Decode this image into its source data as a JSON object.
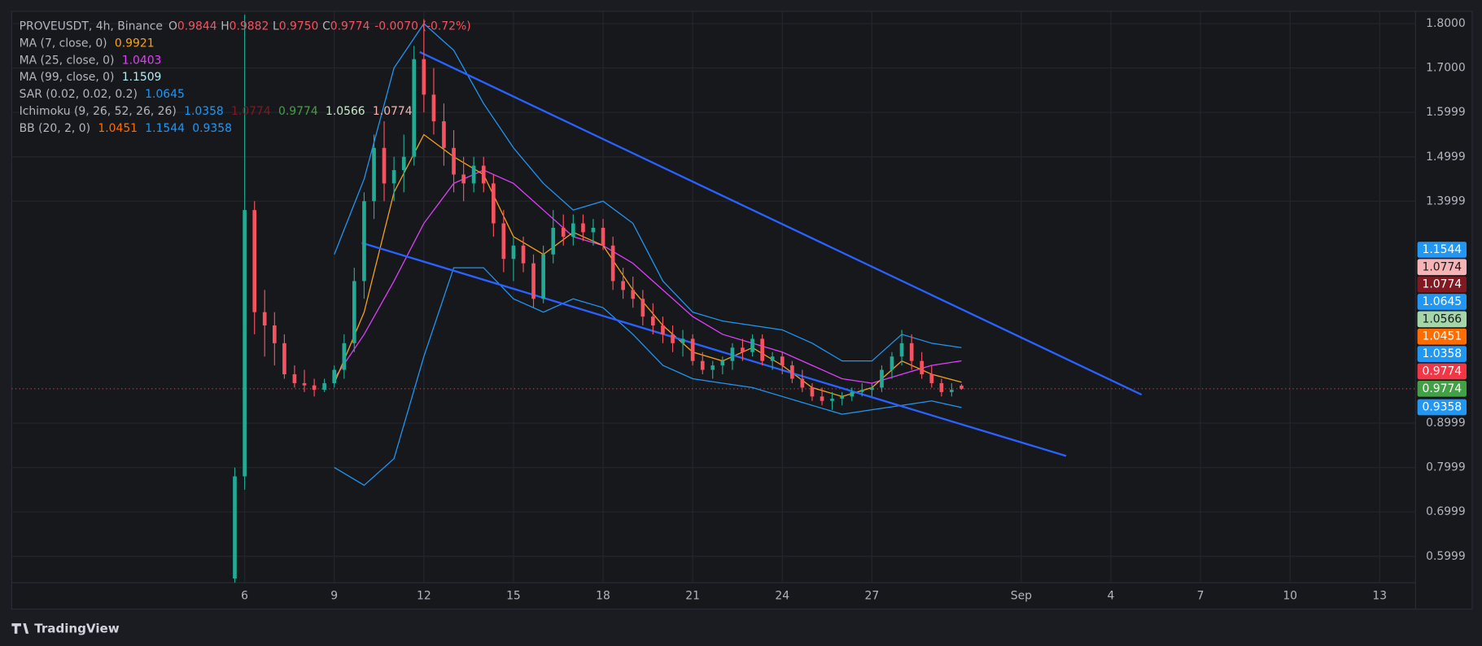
{
  "brand": "TradingView",
  "chart_data": {
    "type": "candlestick",
    "header": {
      "symbol": "PROVEUSDT, 4h, Binance",
      "ohlc_labels": [
        "O",
        "H",
        "L",
        "C"
      ],
      "ohlc": [
        0.9844,
        0.9882,
        {
          "value": 0.975,
          "label": "0.9750"
        },
        0.9774
      ],
      "change": {
        "value": -0.007,
        "label": "-0.0070"
      },
      "change_pct": {
        "value": -0.72,
        "label": "(-0.72%)"
      }
    },
    "indicators": [
      {
        "name": "MA (7, close, 0)",
        "values": [
          0.9921
        ],
        "colors": [
          "#f7a21b"
        ]
      },
      {
        "name": "MA (25, close, 0)",
        "values": [
          1.0403
        ],
        "colors": [
          "#e040fb"
        ]
      },
      {
        "name": "MA (99, close, 0)",
        "values": [
          1.1509
        ],
        "colors": [
          "#b2ebf2"
        ]
      },
      {
        "name": "SAR (0.02, 0.02, 0.2)",
        "values": [
          1.0645
        ],
        "colors": [
          "#2196f3"
        ]
      },
      {
        "name": "Ichimoku (9, 26, 52, 26, 26)",
        "values": [
          1.0358,
          1.0774,
          0.9774,
          1.0566,
          1.0774
        ],
        "colors": [
          "#2196f3",
          "#801922",
          "#43a047",
          "#c8e6c9",
          "#f8b4b4"
        ]
      },
      {
        "name": "BB (20, 2, 0)",
        "values": [
          1.0451,
          1.1544,
          0.9358
        ],
        "colors": [
          "#ff6d00",
          "#2196f3",
          "#2196f3"
        ]
      }
    ],
    "up_color": "#22ab94",
    "down_color": "#f7525f",
    "x": [
      5.67,
      6,
      6.33,
      6.67,
      7,
      7.33,
      7.67,
      8,
      8.33,
      8.67,
      9,
      9.33,
      9.67,
      10,
      10.33,
      10.67,
      11,
      11.33,
      11.67,
      12,
      12.33,
      12.67,
      13,
      13.33,
      13.67,
      14,
      14.33,
      14.67,
      15,
      15.33,
      15.67,
      16,
      16.33,
      16.67,
      17,
      17.33,
      17.67,
      18,
      18.33,
      18.67,
      19,
      19.33,
      19.67,
      20,
      20.33,
      20.67,
      21,
      21.33,
      21.67,
      22,
      22.33,
      22.67,
      23,
      23.33,
      23.67,
      24,
      24.33,
      24.67,
      25,
      25.33,
      25.67,
      26,
      26.33,
      26.67,
      27,
      27.33,
      27.67,
      28,
      28.33,
      28.67,
      29,
      29.33,
      29.67,
      30
    ],
    "open": [
      0.55,
      0.78,
      1.38,
      1.15,
      1.12,
      1.08,
      1.01,
      0.99,
      0.985,
      0.975,
      0.99,
      1.02,
      1.08,
      1.22,
      1.4,
      1.52,
      1.44,
      1.47,
      1.5,
      1.72,
      1.64,
      1.58,
      1.52,
      1.46,
      1.44,
      1.48,
      1.44,
      1.35,
      1.27,
      1.3,
      1.26,
      1.18,
      1.28,
      1.34,
      1.32,
      1.35,
      1.33,
      1.34,
      1.3,
      1.22,
      1.2,
      1.18,
      1.14,
      1.12,
      1.1,
      1.08,
      1.09,
      1.04,
      1.02,
      1.03,
      1.04,
      1.07,
      1.06,
      1.09,
      1.04,
      1.05,
      1.03,
      1.0,
      0.98,
      0.96,
      0.95,
      0.955,
      0.96,
      0.97,
      0.975,
      0.98,
      1.02,
      1.05,
      1.08,
      1.04,
      1.01,
      0.99,
      0.97,
      0.9844
    ],
    "high": [
      0.8,
      1.82,
      1.4,
      1.2,
      1.15,
      1.1,
      1.03,
      1.02,
      1.0,
      1.0,
      1.03,
      1.1,
      1.25,
      1.42,
      1.55,
      1.58,
      1.5,
      1.55,
      1.75,
      1.81,
      1.7,
      1.62,
      1.56,
      1.5,
      1.5,
      1.5,
      1.46,
      1.38,
      1.32,
      1.32,
      1.28,
      1.3,
      1.38,
      1.37,
      1.37,
      1.37,
      1.36,
      1.36,
      1.32,
      1.25,
      1.23,
      1.2,
      1.17,
      1.14,
      1.12,
      1.11,
      1.1,
      1.06,
      1.04,
      1.05,
      1.08,
      1.09,
      1.1,
      1.1,
      1.06,
      1.06,
      1.04,
      1.02,
      0.99,
      0.98,
      0.97,
      0.97,
      0.98,
      0.99,
      0.99,
      1.03,
      1.06,
      1.11,
      1.1,
      1.06,
      1.03,
      1.0,
      0.99,
      0.9882
    ],
    "low": [
      0.54,
      0.75,
      1.1,
      1.05,
      1.03,
      1.0,
      0.98,
      0.97,
      0.96,
      0.97,
      0.98,
      1.0,
      1.06,
      1.18,
      1.36,
      1.4,
      1.4,
      1.42,
      1.48,
      1.6,
      1.55,
      1.48,
      1.42,
      1.4,
      1.42,
      1.42,
      1.32,
      1.24,
      1.22,
      1.24,
      1.16,
      1.17,
      1.26,
      1.3,
      1.3,
      1.31,
      1.3,
      1.29,
      1.2,
      1.18,
      1.16,
      1.12,
      1.1,
      1.08,
      1.06,
      1.05,
      1.03,
      1.01,
      1.0,
      1.01,
      1.02,
      1.04,
      1.05,
      1.03,
      1.02,
      1.01,
      0.99,
      0.97,
      0.95,
      0.94,
      0.93,
      0.94,
      0.95,
      0.96,
      0.96,
      0.97,
      1.0,
      1.03,
      1.02,
      1.0,
      0.98,
      0.96,
      0.96,
      0.975
    ],
    "close": [
      0.78,
      1.38,
      1.15,
      1.12,
      1.08,
      1.01,
      0.99,
      0.985,
      0.975,
      0.99,
      1.02,
      1.08,
      1.22,
      1.4,
      1.52,
      1.44,
      1.47,
      1.5,
      1.72,
      1.64,
      1.58,
      1.52,
      1.46,
      1.44,
      1.48,
      1.44,
      1.35,
      1.27,
      1.3,
      1.26,
      1.18,
      1.28,
      1.34,
      1.32,
      1.35,
      1.33,
      1.34,
      1.3,
      1.22,
      1.2,
      1.18,
      1.14,
      1.12,
      1.1,
      1.08,
      1.09,
      1.04,
      1.02,
      1.03,
      1.04,
      1.07,
      1.06,
      1.09,
      1.04,
      1.05,
      1.03,
      1.0,
      0.98,
      0.96,
      0.95,
      0.955,
      0.96,
      0.97,
      0.975,
      0.98,
      1.02,
      1.05,
      1.08,
      1.04,
      1.01,
      0.99,
      0.97,
      0.975,
      0.9774
    ],
    "lines": [
      {
        "color": "#2196f3",
        "x": [
          9,
          10,
          11,
          12,
          13,
          14,
          15,
          16,
          17,
          18,
          19,
          20,
          21,
          22,
          23,
          24,
          25,
          26,
          27,
          28,
          29,
          30
        ],
        "values": [
          1.28,
          1.45,
          1.7,
          1.8,
          1.74,
          1.62,
          1.52,
          1.44,
          1.38,
          1.4,
          1.35,
          1.22,
          1.15,
          1.13,
          1.12,
          1.11,
          1.08,
          1.04,
          1.04,
          1.1,
          1.08,
          1.07
        ]
      },
      {
        "color": "#2196f3",
        "x": [
          9,
          10,
          11,
          12,
          13,
          14,
          15,
          16,
          17,
          18,
          19,
          20,
          21,
          22,
          23,
          24,
          25,
          26,
          27,
          28,
          29,
          30
        ],
        "values": [
          0.8,
          0.76,
          0.82,
          1.05,
          1.25,
          1.25,
          1.18,
          1.15,
          1.18,
          1.16,
          1.1,
          1.03,
          1.0,
          0.99,
          0.98,
          0.96,
          0.94,
          0.92,
          0.93,
          0.94,
          0.95,
          0.935
        ]
      },
      {
        "color": "#e040fb",
        "x": [
          9,
          10,
          11,
          12,
          13,
          14,
          15,
          16,
          17,
          18,
          19,
          20,
          21,
          22,
          23,
          24,
          25,
          26,
          27,
          28,
          29,
          30
        ],
        "values": [
          1.0,
          1.1,
          1.22,
          1.35,
          1.44,
          1.47,
          1.44,
          1.38,
          1.32,
          1.3,
          1.26,
          1.2,
          1.14,
          1.1,
          1.08,
          1.06,
          1.03,
          1.0,
          0.99,
          1.01,
          1.03,
          1.0403
        ]
      },
      {
        "color": "#f7a21b",
        "x": [
          9,
          10,
          11,
          12,
          13,
          14,
          15,
          16,
          17,
          18,
          19,
          20,
          21,
          22,
          23,
          24,
          25,
          26,
          27,
          28,
          29,
          30
        ],
        "values": [
          0.99,
          1.15,
          1.42,
          1.55,
          1.5,
          1.46,
          1.32,
          1.28,
          1.33,
          1.3,
          1.2,
          1.12,
          1.06,
          1.04,
          1.07,
          1.03,
          0.98,
          0.96,
          0.98,
          1.04,
          1.01,
          0.9921
        ]
      }
    ],
    "trendlines": [
      {
        "color": "#2962ff",
        "x": [
          11.86,
          36.03
        ],
        "values": [
          1.736,
          0.964
        ]
      },
      {
        "color": "#2962ff",
        "x": [
          9.92,
          33.5
        ],
        "values": [
          1.306,
          0.826
        ]
      }
    ],
    "price_tags": [
      {
        "value": 1.1544,
        "color": "#2196f3"
      },
      {
        "value": 1.0774,
        "color": "#f8b4b4"
      },
      {
        "value": 1.0774,
        "color": "#801922"
      },
      {
        "value": 1.0645,
        "color": "#2196f3"
      },
      {
        "value": 1.0566,
        "color": "#a5d6a7"
      },
      {
        "value": 1.0451,
        "color": "#ff6d00"
      },
      {
        "value": 1.0358,
        "color": "#2196f3"
      },
      {
        "value": 0.9774,
        "color": "#f23645"
      },
      {
        "value": 0.9774,
        "color": "#43a047"
      },
      {
        "value": 0.9358,
        "color": "#2196f3"
      }
    ],
    "xlim": [
      -1.8,
      45.2
    ],
    "xticks": [
      6,
      9,
      12,
      15,
      18,
      21,
      24,
      27,
      {
        "value": 32,
        "label": "Sep"
      },
      {
        "value": 35,
        "label": "4"
      },
      {
        "value": 38,
        "label": "7"
      },
      {
        "value": 41,
        "label": "10"
      },
      {
        "value": 44,
        "label": "13"
      }
    ],
    "ylim": [
      0.5404,
      1.8277
    ],
    "yticks": [
      {
        "value": 1.8,
        "label": "1.8000"
      },
      {
        "value": 1.7,
        "label": "1.7000"
      },
      1.5999,
      1.4999,
      1.3999,
      0.8999,
      0.7999,
      0.6999,
      0.5999
    ],
    "grid": true
  }
}
